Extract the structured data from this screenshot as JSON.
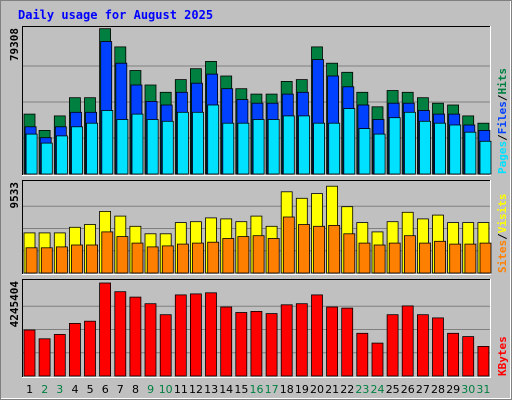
{
  "chart_data": {
    "type": "bar",
    "title": "Daily usage for August 2025",
    "x": [
      "1",
      "2",
      "3",
      "4",
      "5",
      "6",
      "7",
      "8",
      "9",
      "10",
      "11",
      "12",
      "13",
      "14",
      "15",
      "16",
      "17",
      "18",
      "19",
      "20",
      "21",
      "22",
      "23",
      "24",
      "25",
      "26",
      "27",
      "28",
      "29",
      "30",
      "31"
    ],
    "weekend_days": [
      "2",
      "3",
      "9",
      "10",
      "16",
      "17",
      "23",
      "24",
      "30",
      "31"
    ],
    "panels": [
      {
        "ymax_label": "79308",
        "ymax": 79308,
        "right_labels": [
          "Pages",
          "Files",
          "Hits"
        ],
        "series": [
          {
            "name": "Hits",
            "color": "#008040",
            "values": [
              33000,
              24000,
              32000,
              42000,
              42000,
              80000,
              70000,
              57000,
              49000,
              45000,
              52000,
              58000,
              62000,
              54000,
              47000,
              44000,
              44000,
              51000,
              52000,
              70000,
              61000,
              56000,
              45000,
              37000,
              46000,
              45000,
              42000,
              39000,
              38000,
              32000,
              28000
            ]
          },
          {
            "name": "Files",
            "color": "#0040ff",
            "values": [
              26000,
              20000,
              26000,
              34000,
              34000,
              73000,
              61000,
              49000,
              40000,
              38000,
              45000,
              50000,
              55000,
              47000,
              41000,
              39000,
              39000,
              44000,
              45000,
              63000,
              54000,
              48000,
              38000,
              30000,
              39000,
              39000,
              35000,
              33000,
              33000,
              27000,
              24000
            ]
          },
          {
            "name": "Pages",
            "color": "#00e0ff",
            "values": [
              22000,
              17000,
              21000,
              26000,
              28000,
              35000,
              30000,
              33000,
              30000,
              29000,
              34000,
              34000,
              38000,
              28000,
              28000,
              30000,
              30000,
              32000,
              32000,
              28000,
              28000,
              36000,
              25000,
              22000,
              31000,
              34000,
              29000,
              28000,
              27000,
              23000,
              18000
            ]
          }
        ]
      },
      {
        "ymax_label": "9533",
        "ymax": 9533,
        "right_labels": [
          "Sites",
          "Visits"
        ],
        "series": [
          {
            "name": "Visits",
            "color": "#ffff00",
            "values": [
              4300,
              4300,
              4300,
              4900,
              5200,
              6600,
              6100,
              5000,
              4200,
              4200,
              5400,
              5500,
              5900,
              5800,
              5500,
              6100,
              5000,
              8700,
              8000,
              8500,
              9300,
              7100,
              5400,
              4400,
              5500,
              6500,
              5800,
              6200,
              5400,
              5400,
              5400
            ]
          },
          {
            "name": "Sites",
            "color": "#ff8000",
            "values": [
              2700,
              2700,
              2800,
              3000,
              3000,
              4400,
              3900,
              3200,
              2800,
              2900,
              3100,
              3200,
              3300,
              3700,
              3900,
              4000,
              3700,
              6000,
              5200,
              5000,
              5100,
              4200,
              3200,
              3000,
              3200,
              4000,
              3200,
              3400,
              3100,
              3100,
              3200
            ]
          }
        ]
      },
      {
        "ymax_label": "4245404",
        "ymax": 4245404,
        "right_labels": [
          "KBytes"
        ],
        "series": [
          {
            "name": "KBytes",
            "color": "#ff0000",
            "values": [
              2100000,
              1700000,
              1900000,
              2400000,
              2500000,
              4245404,
              3850000,
              3600000,
              3300000,
              2800000,
              3700000,
              3750000,
              3800000,
              3150000,
              2900000,
              2950000,
              2850000,
              3250000,
              3300000,
              3700000,
              3150000,
              3100000,
              1950000,
              1500000,
              2800000,
              3200000,
              2800000,
              2650000,
              1950000,
              1800000,
              1350000
            ]
          }
        ]
      }
    ]
  }
}
